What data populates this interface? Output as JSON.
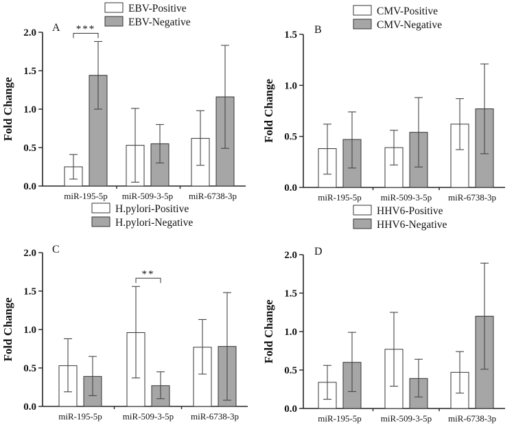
{
  "colors": {
    "positive": "#ffffff",
    "negative": "#a6a6a6",
    "stroke": "#333333"
  },
  "chart_data": [
    {
      "type": "bar",
      "panel": "A",
      "categories": [
        "miR-195-5p",
        "miR-509-3-5p",
        "miR-6738-3p"
      ],
      "ylabel": "Fold Change",
      "ylim": [
        0,
        2.0
      ],
      "yticks": [
        "0.0",
        "0.5",
        "1.0",
        "1.5",
        "2.0"
      ],
      "legend_position": "top",
      "series": [
        {
          "name": "EBV-Positive",
          "values": [
            0.25,
            0.53,
            0.62
          ],
          "err_high": [
            0.41,
            1.01,
            0.98
          ],
          "err_low": [
            0.09,
            0.05,
            0.27
          ]
        },
        {
          "name": "EBV-Negative",
          "values": [
            1.44,
            0.55,
            1.16
          ],
          "err_high": [
            1.88,
            0.8,
            1.83
          ],
          "err_low": [
            1.0,
            0.3,
            0.49
          ]
        }
      ],
      "significance": [
        {
          "category": 0,
          "label": "***"
        }
      ]
    },
    {
      "type": "bar",
      "panel": "B",
      "categories": [
        "miR-195-5p",
        "miR-509-3-5p",
        "miR-6738-3p"
      ],
      "ylabel": "Fold Change",
      "ylim": [
        0,
        1.5
      ],
      "yticks": [
        "0.0",
        "0.5",
        "1.0",
        "1.5"
      ],
      "legend_position": "top",
      "series": [
        {
          "name": "CMV-Positive",
          "values": [
            0.38,
            0.39,
            0.62
          ],
          "err_high": [
            0.62,
            0.56,
            0.87
          ],
          "err_low": [
            0.13,
            0.22,
            0.37
          ]
        },
        {
          "name": "CMV-Negative",
          "values": [
            0.47,
            0.54,
            0.77
          ],
          "err_high": [
            0.74,
            0.88,
            1.21
          ],
          "err_low": [
            0.19,
            0.2,
            0.33
          ]
        }
      ],
      "significance": []
    },
    {
      "type": "bar",
      "panel": "C",
      "categories": [
        "miR-195-5p",
        "miR-509-3-5p",
        "miR-6738-3p"
      ],
      "ylabel": "Fold Change",
      "ylim": [
        0,
        2.0
      ],
      "yticks": [
        "0.0",
        "0.5",
        "1.0",
        "1.5",
        "2.0"
      ],
      "legend_position": "top",
      "series": [
        {
          "name": "H.pylori-Positive",
          "values": [
            0.53,
            0.96,
            0.77
          ],
          "err_high": [
            0.88,
            1.56,
            1.13
          ],
          "err_low": [
            0.19,
            0.37,
            0.42
          ]
        },
        {
          "name": "H.pylori-Negative",
          "values": [
            0.39,
            0.27,
            0.78
          ],
          "err_high": [
            0.65,
            0.45,
            1.48
          ],
          "err_low": [
            0.14,
            0.1,
            0.08
          ]
        }
      ],
      "significance": [
        {
          "category": 1,
          "label": "**"
        }
      ]
    },
    {
      "type": "bar",
      "panel": "D",
      "categories": [
        "miR-195-5p",
        "miR-509-3-5p",
        "miR-6738-3p"
      ],
      "ylabel": "Fold Change",
      "ylim": [
        0,
        2.0
      ],
      "yticks": [
        "0.0",
        "0.5",
        "1.0",
        "1.5",
        "2.0"
      ],
      "legend_position": "top",
      "series": [
        {
          "name": "HHV6-Positive",
          "values": [
            0.34,
            0.77,
            0.47
          ],
          "err_high": [
            0.56,
            1.25,
            0.74
          ],
          "err_low": [
            0.12,
            0.29,
            0.2
          ]
        },
        {
          "name": "HHV6-Negative",
          "values": [
            0.6,
            0.39,
            1.2
          ],
          "err_high": [
            0.99,
            0.64,
            1.89
          ],
          "err_low": [
            0.22,
            0.15,
            0.51
          ]
        }
      ],
      "significance": []
    }
  ]
}
